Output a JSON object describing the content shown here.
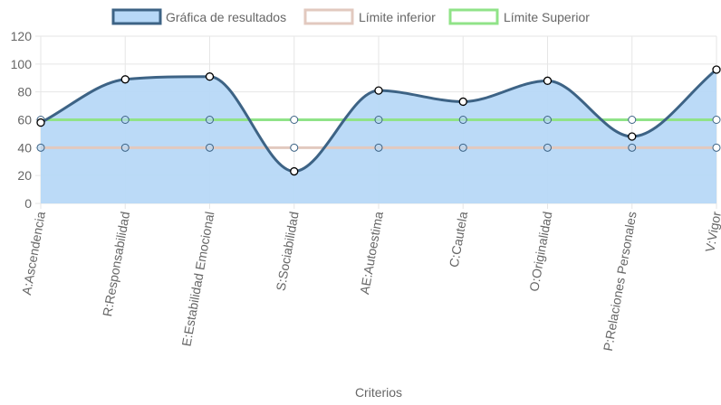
{
  "chart_data": {
    "type": "line",
    "xlabel": "Criterios",
    "ylabel": "",
    "ylim": [
      0,
      120
    ],
    "yticks": [
      0,
      20,
      40,
      60,
      80,
      100,
      120
    ],
    "grid": true,
    "legend_position": "top",
    "categories": [
      "A:Ascendencia",
      "R:Responsabilidad",
      "E:Estabilidad Emocional",
      "S:Sociabilidad",
      "AE:Autoestima",
      "C:Cautela",
      "O:Originalidad",
      "P:Relaciones Personales",
      "V:Vigor"
    ],
    "series": [
      {
        "name": "Gráfica de resultados",
        "values": [
          58,
          89,
          91,
          23,
          81,
          73,
          88,
          48,
          96
        ],
        "color": "#3d6385",
        "fill": "#b7d8f7",
        "filled": true
      },
      {
        "name": "Límite inferior",
        "values": [
          40,
          40,
          40,
          40,
          40,
          40,
          40,
          40,
          40
        ],
        "color": "#e2c9bf",
        "filled": false
      },
      {
        "name": "Límite Superior",
        "values": [
          60,
          60,
          60,
          60,
          60,
          60,
          60,
          60,
          60
        ],
        "color": "#90e388",
        "filled": false
      }
    ]
  }
}
